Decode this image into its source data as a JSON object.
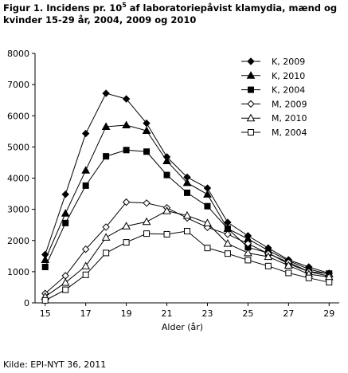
{
  "chart_data": {
    "type": "line",
    "title": [
      "Figur 1. Incidens pr. 10",
      "5",
      " af laboratoriepåvist klamydia, mænd og",
      "kvinder 15-29 år, 2004, 2009 og 2010"
    ],
    "x_label": "Alder (år)",
    "source": "Kilde: EPI-NYT 36, 2011",
    "x": [
      15,
      16,
      17,
      18,
      19,
      20,
      21,
      22,
      23,
      24,
      25,
      26,
      27,
      28,
      29
    ],
    "xlim": [
      14.5,
      29.5
    ],
    "xticks": [
      15,
      17,
      19,
      21,
      23,
      25,
      27,
      29
    ],
    "ylim": [
      0,
      8000
    ],
    "yticks": [
      0,
      1000,
      2000,
      3000,
      4000,
      5000,
      6000,
      7000,
      8000
    ],
    "grid": false,
    "legend": "upper right",
    "series": [
      {
        "name": "K, 2009",
        "color": "#000000",
        "marker": "diamond",
        "filled": true,
        "values": [
          1550,
          3480,
          5430,
          6720,
          6540,
          5760,
          4680,
          4030,
          3680,
          2580,
          2150,
          1760,
          1380,
          1150,
          950
        ]
      },
      {
        "name": "K, 2010",
        "color": "#000000",
        "marker": "triangle",
        "filled": true,
        "values": [
          1380,
          2870,
          4250,
          5650,
          5700,
          5520,
          4550,
          3850,
          3480,
          2380,
          2050,
          1680,
          1350,
          1080,
          920
        ]
      },
      {
        "name": "K, 2004",
        "color": "#000000",
        "marker": "square",
        "filled": true,
        "values": [
          1150,
          2560,
          3760,
          4700,
          4900,
          4850,
          4100,
          3530,
          3100,
          2380,
          1780,
          1600,
          1250,
          1000,
          940
        ]
      },
      {
        "name": "M, 2009",
        "color": "#000000",
        "marker": "diamond",
        "filled": false,
        "values": [
          300,
          870,
          1720,
          2430,
          3230,
          3200,
          3050,
          2720,
          2420,
          2200,
          1900,
          1580,
          1300,
          1000,
          860
        ]
      },
      {
        "name": "M, 2010",
        "color": "#000000",
        "marker": "triangle",
        "filled": false,
        "values": [
          200,
          650,
          1180,
          2100,
          2460,
          2600,
          2950,
          2800,
          2560,
          1900,
          1600,
          1480,
          1200,
          920,
          830
        ]
      },
      {
        "name": "M, 2004",
        "color": "#000000",
        "marker": "square",
        "filled": false,
        "values": [
          80,
          420,
          900,
          1600,
          1940,
          2220,
          2200,
          2300,
          1760,
          1580,
          1370,
          1180,
          960,
          800,
          660
        ]
      }
    ]
  }
}
